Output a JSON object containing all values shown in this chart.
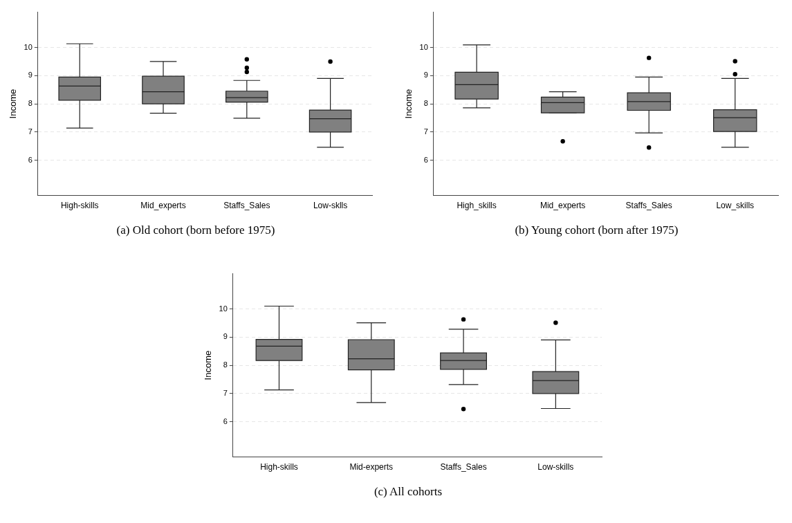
{
  "chart_data": [
    {
      "type": "box",
      "title": "(a) Old cohort (born before 1975)",
      "ylabel": "Income",
      "categories": [
        "High-skills",
        "Mid_experts",
        "Staffs_Sales",
        "Low-sklls"
      ],
      "color": "#808080",
      "ylim": [
        4.75,
        11.25
      ],
      "yticks": [
        6,
        7,
        8,
        9,
        10
      ],
      "grid": "y",
      "legend": false,
      "boxes": [
        {
          "low": 7.14,
          "q1": 8.13,
          "median": 8.63,
          "q3": 8.95,
          "high": 10.13
        },
        {
          "low": 7.67,
          "q1": 8.0,
          "median": 8.43,
          "q3": 8.98,
          "high": 9.5
        },
        {
          "low": 7.49,
          "q1": 8.06,
          "median": 8.22,
          "q3": 8.45,
          "high": 8.83,
          "outliers": [
            9.58,
            9.28,
            9.13
          ]
        },
        {
          "low": 6.46,
          "q1": 7.0,
          "median": 7.47,
          "q3": 7.78,
          "high": 8.9,
          "outliers": [
            9.5
          ]
        }
      ]
    },
    {
      "type": "box",
      "title": "(b) Young cohort (born after 1975)",
      "ylabel": "Income",
      "categories": [
        "High_skills",
        "Mid_experts",
        "Staffs_Sales",
        "Low_skills"
      ],
      "color": "#808080",
      "ylim": [
        4.75,
        11.25
      ],
      "yticks": [
        6,
        7,
        8,
        9,
        10
      ],
      "grid": "y",
      "legend": false,
      "boxes": [
        {
          "low": 7.86,
          "q1": 8.17,
          "median": 8.68,
          "q3": 9.12,
          "high": 10.09
        },
        {
          "low": 7.68,
          "q1": 7.68,
          "median": 8.04,
          "q3": 8.24,
          "high": 8.43,
          "outliers": [
            6.67
          ]
        },
        {
          "low": 6.97,
          "q1": 7.77,
          "median": 8.08,
          "q3": 8.39,
          "high": 8.95,
          "outliers": [
            9.63,
            6.45
          ]
        },
        {
          "low": 6.46,
          "q1": 7.02,
          "median": 7.51,
          "q3": 7.79,
          "high": 8.9,
          "outliers": [
            9.51,
            9.05
          ]
        }
      ]
    },
    {
      "type": "box",
      "title": "(c) All cohorts",
      "ylabel": "Income",
      "categories": [
        "High-skills",
        "Mid-experts",
        "Staffs_Sales",
        "Low-skills"
      ],
      "color": "#808080",
      "ylim": [
        4.75,
        11.25
      ],
      "yticks": [
        6,
        7,
        8,
        9,
        10
      ],
      "grid": "y",
      "legend": false,
      "boxes": [
        {
          "low": 7.13,
          "q1": 8.17,
          "median": 8.68,
          "q3": 8.92,
          "high": 10.1
        },
        {
          "low": 6.68,
          "q1": 7.84,
          "median": 8.23,
          "q3": 8.91,
          "high": 9.51
        },
        {
          "low": 7.32,
          "q1": 7.86,
          "median": 8.17,
          "q3": 8.44,
          "high": 9.28,
          "outliers": [
            9.63,
            6.45
          ]
        },
        {
          "low": 6.47,
          "q1": 7.0,
          "median": 7.46,
          "q3": 7.78,
          "high": 8.9,
          "outliers": [
            9.51
          ]
        }
      ]
    }
  ]
}
